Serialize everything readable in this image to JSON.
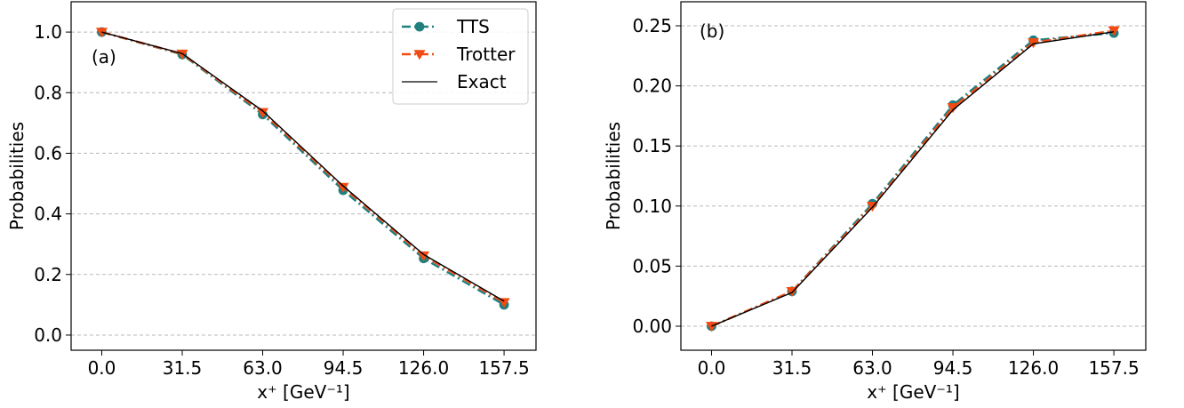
{
  "chart_data": [
    {
      "type": "line",
      "panel_label": "(a)",
      "xlabel": "x⁺ [GeV⁻¹]",
      "ylabel": "Probabilities",
      "categories": [
        "0.0",
        "31.5",
        "63.0",
        "94.5",
        "126.0",
        "157.5"
      ],
      "x": [
        0.0,
        31.5,
        63.0,
        94.5,
        126.0,
        157.5
      ],
      "xlim": [
        -12,
        170
      ],
      "ylim": [
        -0.05,
        1.1
      ],
      "yticks": [
        0.0,
        0.2,
        0.4,
        0.6,
        0.8,
        1.0
      ],
      "ytick_labels": [
        "0.0",
        "0.2",
        "0.4",
        "0.6",
        "0.8",
        "1.0"
      ],
      "grid": "horizontal dashed",
      "legend": "top-right",
      "series": [
        {
          "name": "TTS",
          "values": [
            1.0,
            0.926,
            0.728,
            0.478,
            0.253,
            0.1
          ],
          "color": "#1f7f7f",
          "marker": "circle",
          "style": "dash-dot"
        },
        {
          "name": "Trotter",
          "values": [
            1.0,
            0.928,
            0.735,
            0.488,
            0.262,
            0.108
          ],
          "color": "#f24a12",
          "marker": "triangle-down",
          "style": "dash-dot"
        },
        {
          "name": "Exact",
          "values": [
            1.0,
            0.929,
            0.74,
            0.492,
            0.266,
            0.112
          ],
          "color": "#000000",
          "marker": "none",
          "style": "solid"
        }
      ]
    },
    {
      "type": "line",
      "panel_label": "(b)",
      "xlabel": "x⁺ [GeV⁻¹]",
      "ylabel": "Probabilities",
      "categories": [
        "0.0",
        "31.5",
        "63.0",
        "94.5",
        "126.0",
        "157.5"
      ],
      "x": [
        0.0,
        31.5,
        63.0,
        94.5,
        126.0,
        157.5
      ],
      "xlim": [
        -12,
        170
      ],
      "ylim": [
        -0.02,
        0.27
      ],
      "yticks": [
        0.0,
        0.05,
        0.1,
        0.15,
        0.2,
        0.25
      ],
      "ytick_labels": [
        "0.00",
        "0.05",
        "0.10",
        "0.15",
        "0.20",
        "0.25"
      ],
      "grid": "horizontal dashed",
      "legend": "none",
      "series": [
        {
          "name": "TTS",
          "values": [
            0.0,
            0.029,
            0.102,
            0.184,
            0.238,
            0.244
          ],
          "color": "#1f7f7f",
          "marker": "circle",
          "style": "dash-dot"
        },
        {
          "name": "Trotter",
          "values": [
            0.0,
            0.029,
            0.1,
            0.182,
            0.236,
            0.246
          ],
          "color": "#f24a12",
          "marker": "triangle-down",
          "style": "dash-dot"
        },
        {
          "name": "Exact",
          "values": [
            0.0,
            0.028,
            0.099,
            0.18,
            0.235,
            0.245
          ],
          "color": "#000000",
          "marker": "none",
          "style": "solid"
        }
      ]
    }
  ]
}
